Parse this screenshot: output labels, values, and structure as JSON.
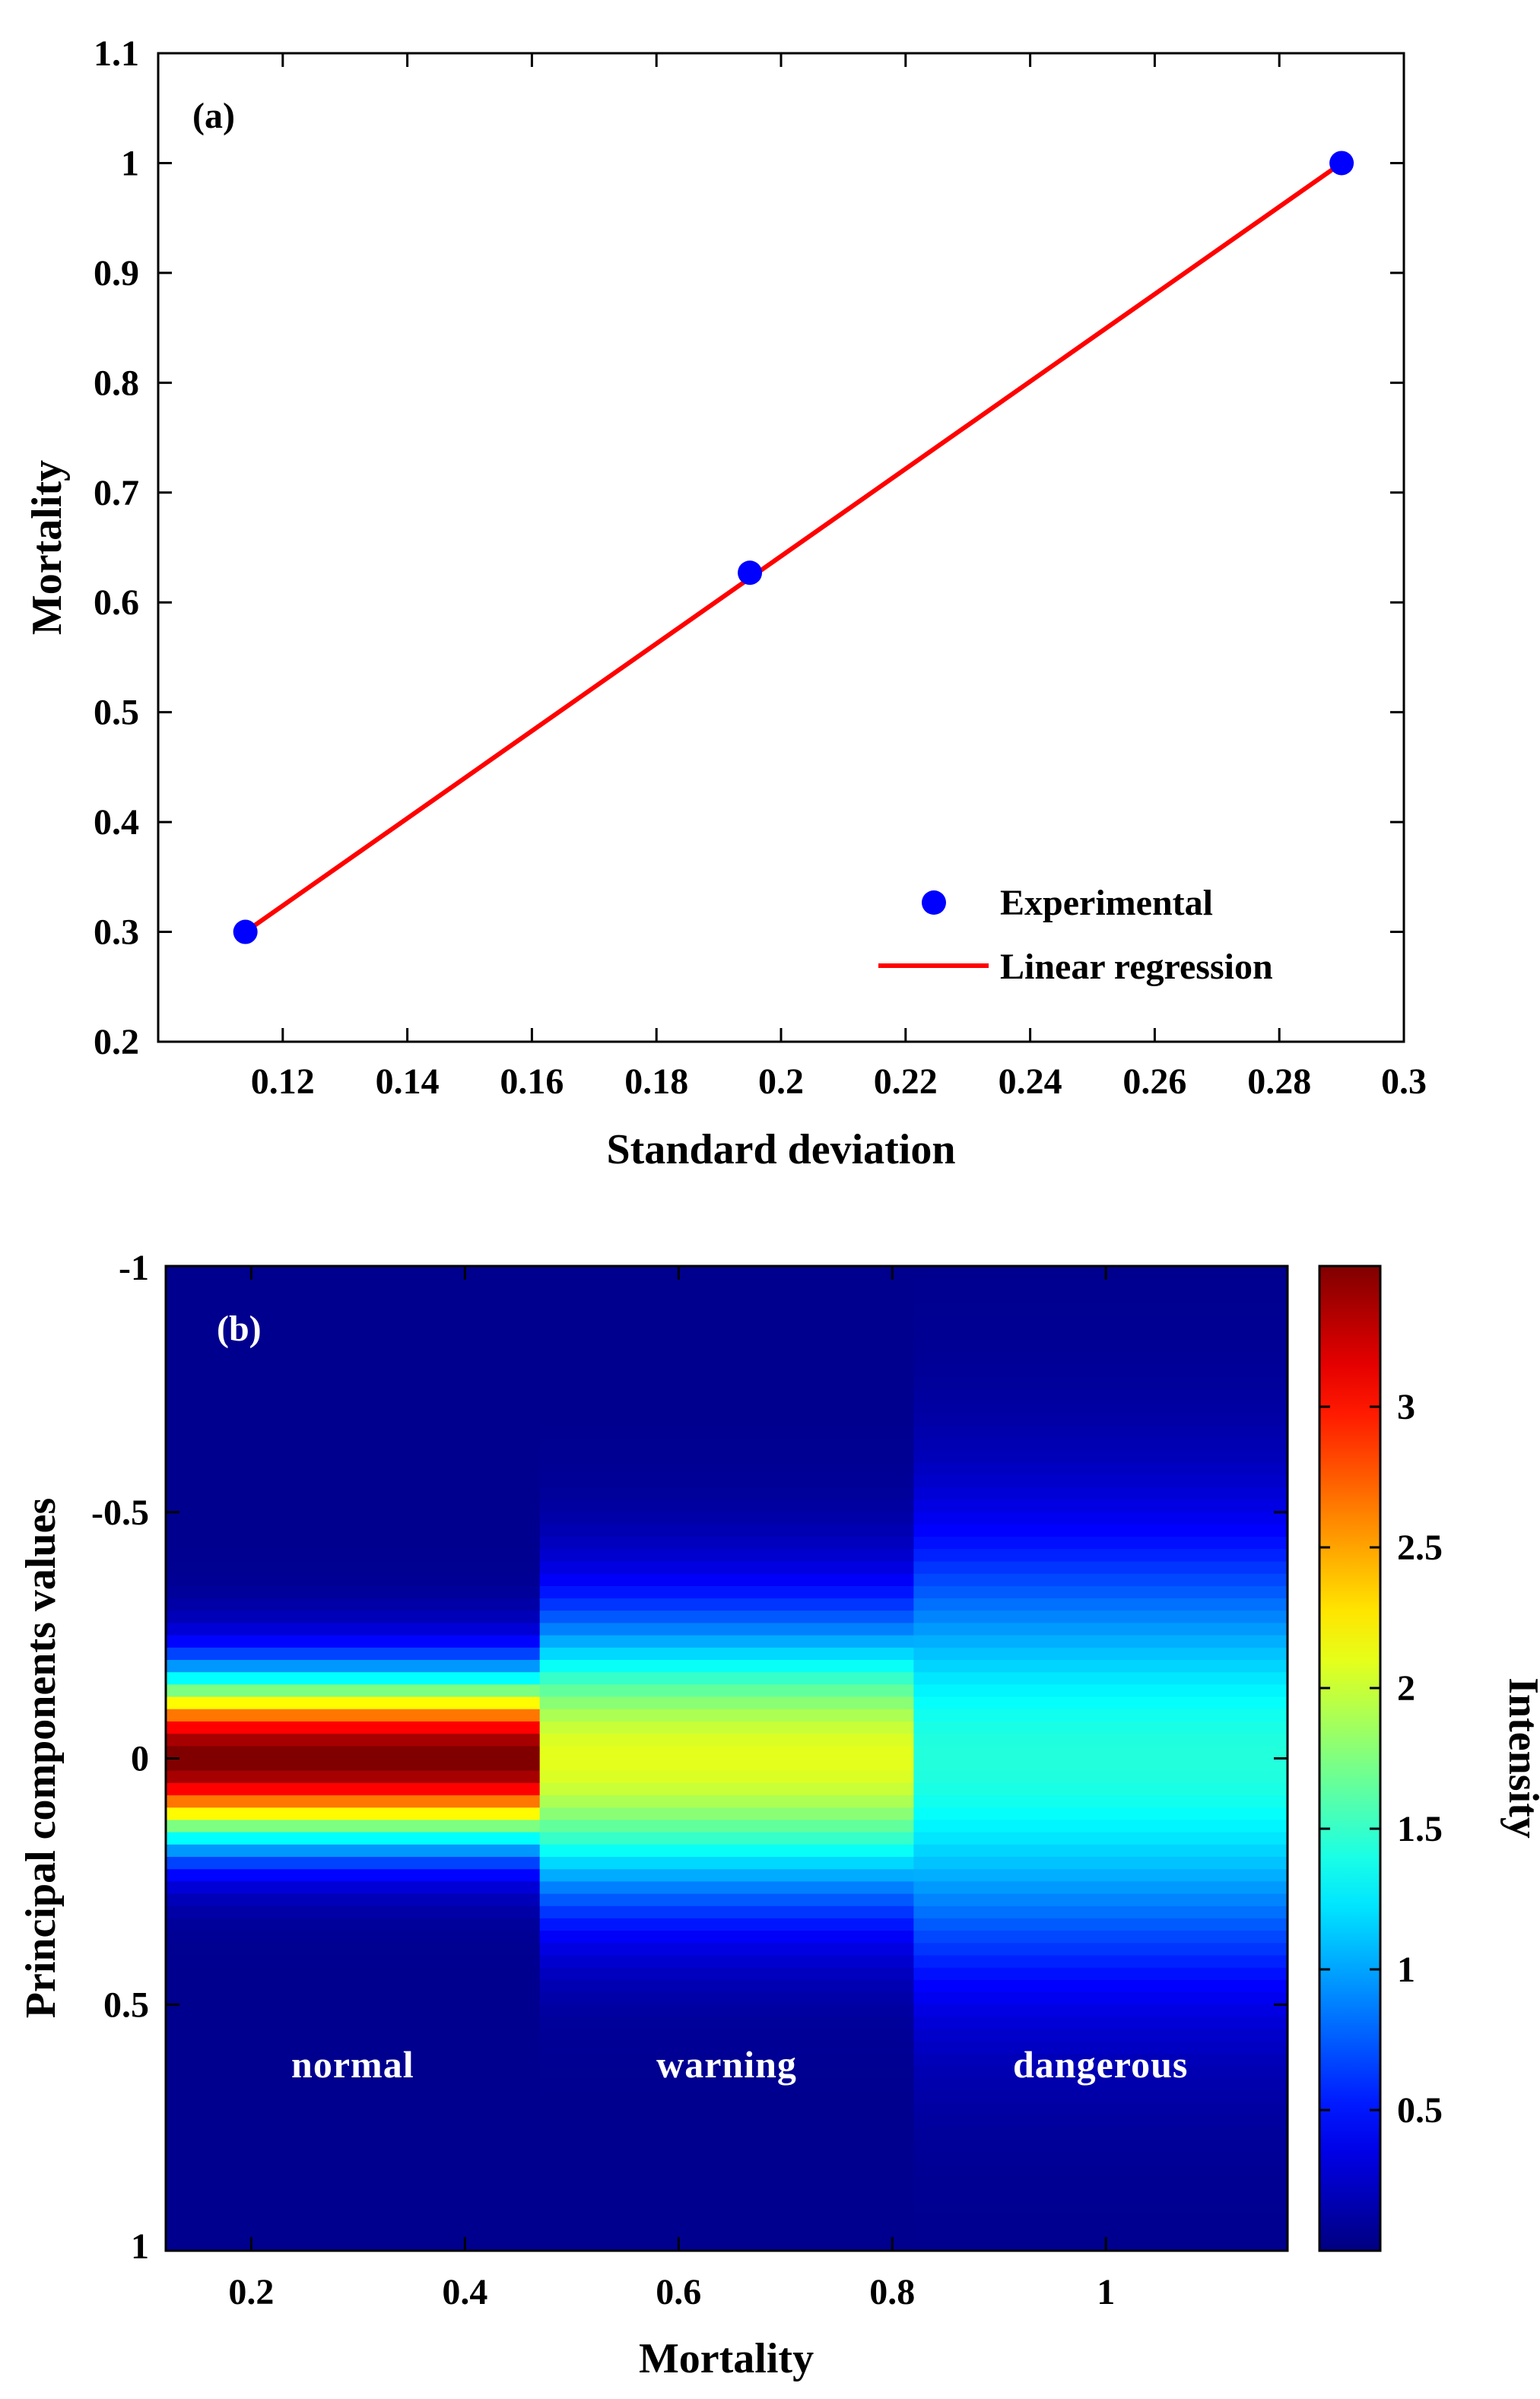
{
  "chart_data": [
    {
      "panel_label": "(a)",
      "type": "scatter",
      "xlabel": "Standard deviation",
      "ylabel": "Mortality",
      "xlim": [
        0.1,
        0.3
      ],
      "ylim": [
        0.2,
        1.1
      ],
      "xticks": [
        0.12,
        0.14,
        0.16,
        0.18,
        0.2,
        0.22,
        0.24,
        0.26,
        0.28,
        0.3
      ],
      "xtick_labels": [
        "0.12",
        "0.14",
        "0.16",
        "0.18",
        "0.2",
        "0.22",
        "0.24",
        "0.26",
        "0.28",
        "0.3"
      ],
      "yticks": [
        0.2,
        0.3,
        0.4,
        0.5,
        0.6,
        0.7,
        0.8,
        0.9,
        1,
        1.1
      ],
      "ytick_labels": [
        "0.2",
        "0.3",
        "0.4",
        "0.5",
        "0.6",
        "0.7",
        "0.8",
        "0.9",
        "1",
        "1.1"
      ],
      "legend_position": "bottom-right",
      "series": [
        {
          "name": "Experimental",
          "kind": "scatter",
          "color": "#0000ff",
          "x": [
            0.114,
            0.195,
            0.29
          ],
          "y": [
            0.3,
            0.627,
            1.0
          ]
        },
        {
          "name": "Linear regression",
          "kind": "line",
          "color": "#ff0000",
          "x": [
            0.114,
            0.29
          ],
          "y": [
            0.3,
            1.0
          ]
        }
      ]
    },
    {
      "panel_label": "(b)",
      "type": "heatmap",
      "xlabel": "Mortality",
      "ylabel": "Principal components values",
      "colorbar_label": "Intensity",
      "colormap": "jet",
      "xlim": [
        0.12,
        1.17
      ],
      "ylim": [
        1,
        -1
      ],
      "xticks": [
        0.2,
        0.4,
        0.6,
        0.8,
        1
      ],
      "xtick_labels": [
        "0.2",
        "0.4",
        "0.6",
        "0.8",
        "1"
      ],
      "yticks": [
        -1,
        -0.5,
        0,
        0.5,
        1
      ],
      "ytick_labels": [
        "-1",
        "-0.5",
        "0",
        "0.5",
        "1"
      ],
      "colorbar_range": [
        0,
        3.5
      ],
      "colorbar_ticks": [
        0.5,
        1,
        1.5,
        2,
        2.5,
        3
      ],
      "colorbar_tick_labels": [
        "0.5",
        "1",
        "1.5",
        "2",
        "2.5",
        "3"
      ],
      "zones": [
        {
          "label": "normal",
          "x_range": [
            0.12,
            0.47
          ],
          "mortality": 0.3,
          "sigma": 0.114,
          "peak_intensity": 3.5
        },
        {
          "label": "warning",
          "x_range": [
            0.47,
            0.82
          ],
          "mortality": 0.627,
          "sigma": 0.195,
          "peak_intensity": 2.05
        },
        {
          "label": "dangerous",
          "x_range": [
            0.82,
            1.17
          ],
          "mortality": 1.0,
          "sigma": 0.29,
          "peak_intensity": 1.38
        }
      ]
    }
  ]
}
